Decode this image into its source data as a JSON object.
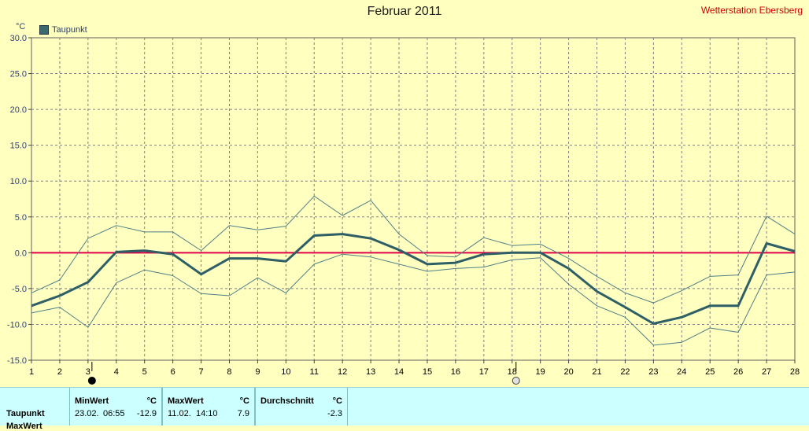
{
  "title": "Februar 2011",
  "station": "Wetterstation Ebersberg",
  "unit": "°C",
  "legend": {
    "label": "Taupunkt"
  },
  "colors": {
    "background": "#ffffc0",
    "mean_line": "#2f5f66",
    "band_line": "#4f7f86",
    "zero_line": "#e0004a",
    "grid": "#808080",
    "panel": "#ccffff"
  },
  "chart_data": {
    "type": "line",
    "title": "Februar 2011",
    "ylabel": "°C",
    "ylim": [
      -15,
      30
    ],
    "yticks": [
      "30.0",
      "25.0",
      "20.0",
      "15.0",
      "10.0",
      "5.0",
      "0.0",
      "-5.0",
      "-10.0",
      "-15.0"
    ],
    "x": [
      1,
      2,
      3,
      4,
      5,
      6,
      7,
      8,
      9,
      10,
      11,
      12,
      13,
      14,
      15,
      16,
      17,
      18,
      19,
      20,
      21,
      22,
      23,
      24,
      25,
      26,
      27,
      28
    ],
    "grid": true,
    "reference_line": 0,
    "series": [
      {
        "name": "Taupunkt",
        "role": "mean",
        "values": [
          -7.4,
          -6.0,
          -4.1,
          0.1,
          0.3,
          -0.2,
          -3.0,
          -0.8,
          -0.8,
          -1.2,
          2.4,
          2.6,
          2.0,
          0.4,
          -1.6,
          -1.4,
          -0.2,
          0.0,
          0.0,
          -2.2,
          -5.4,
          -7.6,
          -9.9,
          -9.0,
          -7.4,
          -7.4,
          1.3,
          0.2
        ]
      },
      {
        "role": "max",
        "values": [
          -5.6,
          -3.8,
          2.0,
          3.8,
          2.9,
          2.9,
          0.3,
          3.8,
          3.2,
          3.7,
          7.9,
          5.2,
          7.3,
          2.6,
          -0.4,
          -0.6,
          2.1,
          1.0,
          1.2,
          -0.8,
          -3.3,
          -5.6,
          -7.0,
          -5.3,
          -3.3,
          -3.1,
          5.1,
          2.6
        ]
      },
      {
        "role": "min",
        "values": [
          -8.4,
          -7.6,
          -10.4,
          -4.2,
          -2.4,
          -3.2,
          -5.7,
          -6.0,
          -3.5,
          -5.6,
          -1.6,
          -0.2,
          -0.6,
          -1.6,
          -2.6,
          -2.2,
          -2.0,
          -1.0,
          -0.7,
          -4.4,
          -7.4,
          -9.0,
          -12.9,
          -12.5,
          -10.5,
          -11.1,
          -3.1,
          -2.7
        ]
      }
    ],
    "markers": [
      {
        "day": 3,
        "icon": "new-moon-icon"
      },
      {
        "day": 18,
        "icon": "full-moon-icon"
      }
    ]
  },
  "stats": {
    "row_label": "Taupunkt",
    "row_label_2": "MaxWert",
    "min": {
      "header": "MinWert",
      "unit": "°C",
      "date": "23.02.",
      "time": "06:55",
      "value": "-12.9"
    },
    "max": {
      "header": "MaxWert",
      "unit": "°C",
      "date": "11.02.",
      "time": "14:10",
      "value": "7.9"
    },
    "avg": {
      "header": "Durchschnitt",
      "unit": "°C",
      "value": "-2.3"
    }
  }
}
